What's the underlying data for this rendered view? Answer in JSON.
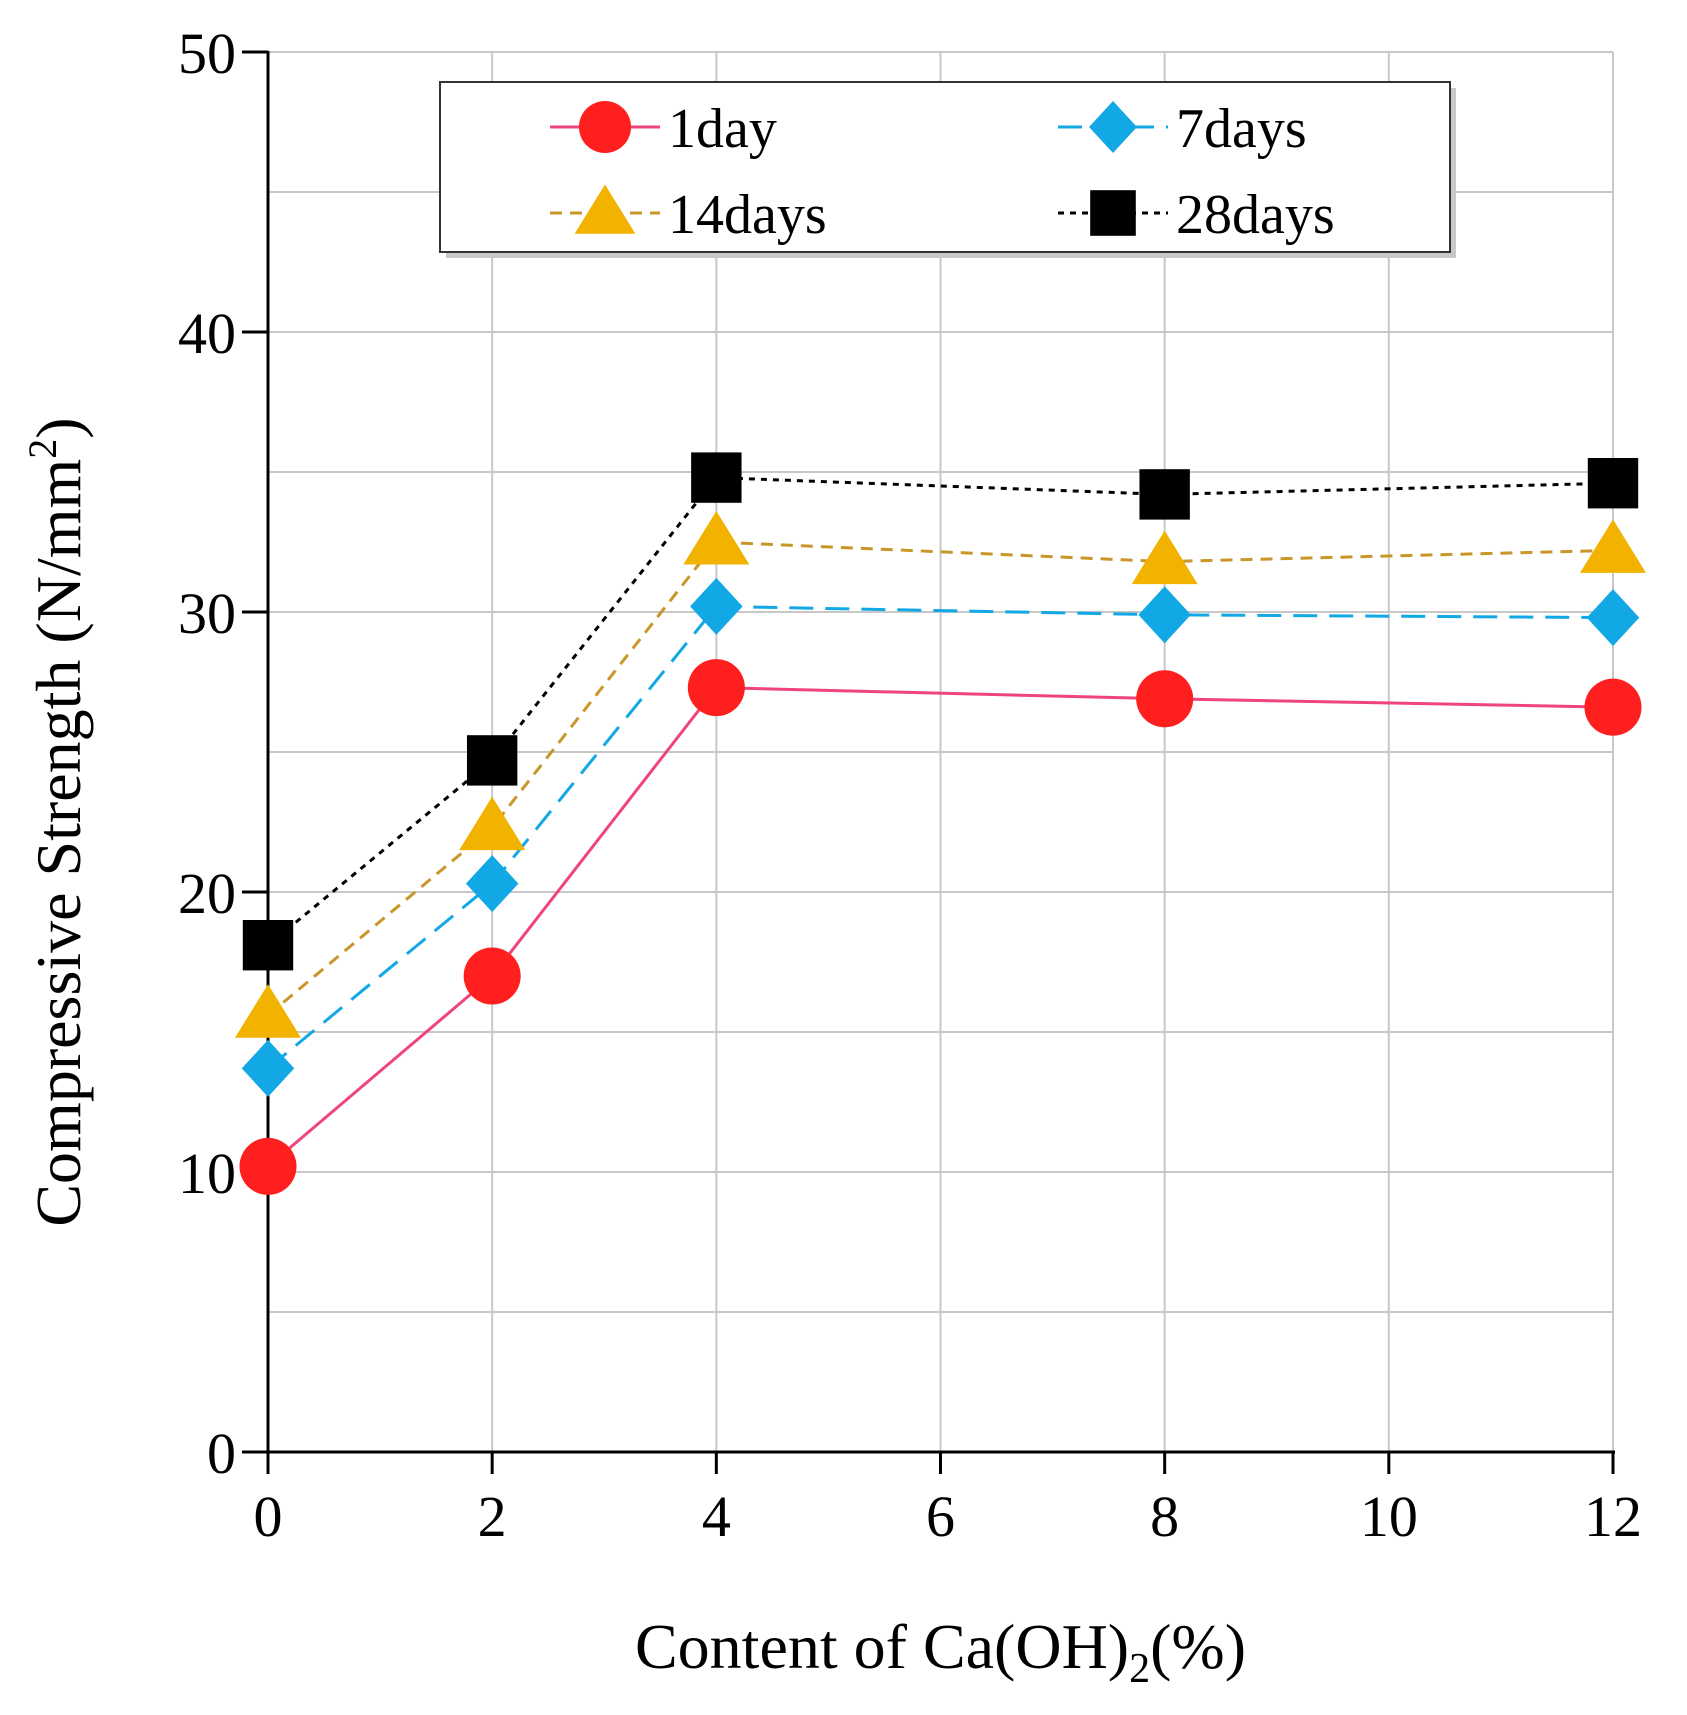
{
  "chart_data": {
    "type": "line",
    "title": "",
    "xlabel": "Content of Ca(OH)",
    "xlabel_sub": "2",
    "xlabel_suffix": "(%)",
    "ylabel": "Compressive Strength (N/mm",
    "ylabel_sup": "2",
    "ylabel_suffix": ")",
    "xlim": [
      0,
      12
    ],
    "ylim": [
      0,
      50
    ],
    "x_ticks": [
      "0",
      "2",
      "4",
      "6",
      "8",
      "10",
      "12"
    ],
    "y_ticks": [
      "0",
      "10",
      "20",
      "30",
      "40",
      "50"
    ],
    "grid": true,
    "legend_position": "top-center",
    "x": [
      0,
      2,
      4,
      8,
      12
    ],
    "series": [
      {
        "name": "1day",
        "values": [
          10.2,
          17.0,
          27.3,
          26.9,
          26.6
        ],
        "color": "#ff1f1f",
        "line_color": "#f0457a",
        "marker": "circle",
        "dash": ""
      },
      {
        "name": "7days",
        "values": [
          13.7,
          20.3,
          30.2,
          29.9,
          29.8
        ],
        "color": "#12a8e6",
        "line_color": "#12a8e6",
        "marker": "diamond",
        "dash": "24 12"
      },
      {
        "name": "14days",
        "values": [
          15.6,
          22.3,
          32.5,
          31.8,
          32.2
        ],
        "color": "#f2b300",
        "line_color": "#c9962a",
        "marker": "triangle",
        "dash": "12 8"
      },
      {
        "name": "28days",
        "values": [
          18.1,
          24.7,
          34.8,
          34.2,
          34.6
        ],
        "color": "#000000",
        "line_color": "#000000",
        "marker": "square",
        "dash": "6 6"
      }
    ]
  }
}
